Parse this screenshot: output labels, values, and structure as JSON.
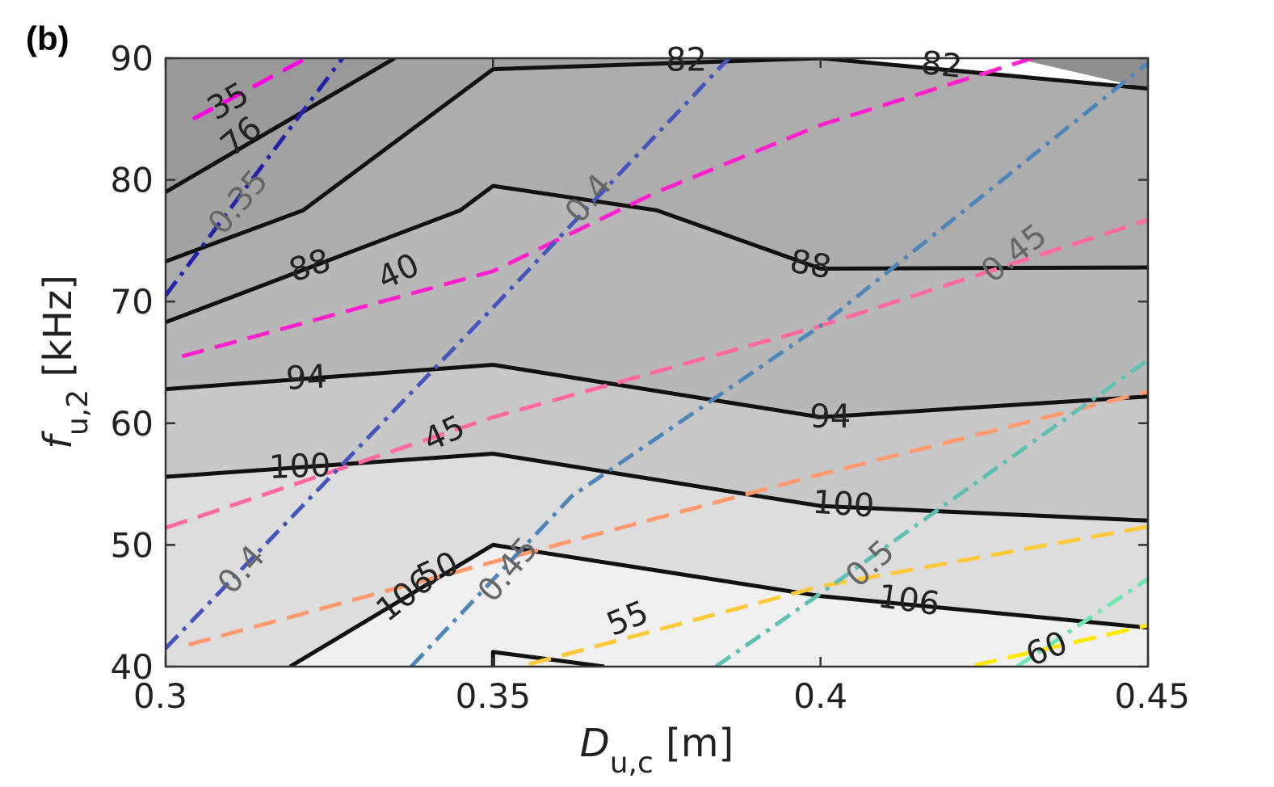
{
  "panel_label": "(b)",
  "chart_data": {
    "type": "contour",
    "xlabel": {
      "main": "D",
      "sub": "u,c",
      "unit": " [m]"
    },
    "ylabel": {
      "main": "f",
      "sub": "u,2",
      "unit": " [kHz]"
    },
    "xlim": [
      0.3,
      0.45
    ],
    "ylim": [
      40,
      90
    ],
    "xticks": [
      0.3,
      0.35,
      0.4,
      0.45
    ],
    "xtick_labels": [
      "0.3",
      "0.35",
      "0.4",
      "0.45"
    ],
    "yticks": [
      40,
      50,
      60,
      70,
      80,
      90
    ],
    "ytick_labels": [
      "40",
      "50",
      "60",
      "70",
      "80",
      "90"
    ],
    "filled_levels": [
      {
        "fill": "#f0f0f0",
        "boundary": [
          [
            0.3,
            40
          ],
          [
            0.319,
            40
          ],
          [
            0.35,
            50
          ],
          [
            0.4,
            45.8
          ],
          [
            0.45,
            43.2
          ],
          [
            0.45,
            40
          ]
        ]
      },
      {
        "fill": "#dddddd",
        "boundary": [
          [
            0.3,
            40
          ],
          [
            0.3,
            55.6
          ],
          [
            0.35,
            57.5
          ],
          [
            0.4,
            53.2
          ],
          [
            0.45,
            52
          ],
          [
            0.45,
            43.2
          ],
          [
            0.4,
            45.8
          ],
          [
            0.35,
            50
          ],
          [
            0.319,
            40
          ]
        ]
      },
      {
        "fill": "#c8c8c8",
        "boundary": [
          [
            0.3,
            55.6
          ],
          [
            0.3,
            62.8
          ],
          [
            0.35,
            64.8
          ],
          [
            0.4,
            60.5
          ],
          [
            0.45,
            62.2
          ],
          [
            0.45,
            52
          ],
          [
            0.4,
            53.2
          ],
          [
            0.35,
            57.5
          ]
        ]
      },
      {
        "fill": "#b8b8b8",
        "boundary": [
          [
            0.3,
            62.8
          ],
          [
            0.3,
            68.3
          ],
          [
            0.345,
            77.5
          ],
          [
            0.35,
            79.5
          ],
          [
            0.375,
            77.5
          ],
          [
            0.4,
            72.7
          ],
          [
            0.45,
            72.8
          ],
          [
            0.45,
            62.2
          ],
          [
            0.4,
            60.5
          ],
          [
            0.35,
            64.8
          ]
        ]
      },
      {
        "fill": "#adadad",
        "boundary": [
          [
            0.3,
            68.3
          ],
          [
            0.3,
            73.3
          ],
          [
            0.321,
            77.5
          ],
          [
            0.35,
            89.1
          ],
          [
            0.4,
            90
          ],
          [
            0.45,
            87.5
          ],
          [
            0.45,
            72.8
          ],
          [
            0.4,
            72.7
          ],
          [
            0.375,
            77.5
          ],
          [
            0.35,
            79.5
          ],
          [
            0.345,
            77.5
          ]
        ]
      },
      {
        "fill": "#a3a3a3",
        "boundary": [
          [
            0.3,
            73.3
          ],
          [
            0.3,
            79.0
          ],
          [
            0.335,
            90
          ],
          [
            0.4,
            90
          ],
          [
            0.35,
            89.1
          ],
          [
            0.321,
            77.5
          ]
        ]
      },
      {
        "fill": "#999999",
        "boundary": [
          [
            0.3,
            79.0
          ],
          [
            0.3,
            90
          ],
          [
            0.335,
            90
          ]
        ]
      },
      {
        "fill": "#8f8f8f",
        "boundary": [
          [
            0.43,
            90
          ],
          [
            0.45,
            90
          ],
          [
            0.45,
            87.5
          ]
        ]
      }
    ],
    "contour_series": [
      {
        "label": "76",
        "color": "#111111",
        "dash": "solid",
        "points": [
          [
            0.3,
            79.0
          ],
          [
            0.335,
            90
          ]
        ],
        "label_at": [
          0.3115,
          83.6
        ],
        "label_angle": -40
      },
      {
        "label": "82",
        "color": "#111111",
        "dash": "solid",
        "points": [
          [
            0.3,
            73.3
          ],
          [
            0.321,
            77.5
          ],
          [
            0.35,
            89.1
          ],
          [
            0.4,
            90
          ],
          [
            0.45,
            87.5
          ]
        ],
        "extra_labels": [
          [
            0.4185,
            89.5,
            6
          ]
        ],
        "label_at": [
          0.3795,
          89.9
        ],
        "label_angle": 0
      },
      {
        "label": "88",
        "color": "#111111",
        "dash": "solid",
        "points": [
          [
            0.3,
            68.3
          ],
          [
            0.345,
            77.5
          ],
          [
            0.35,
            79.5
          ],
          [
            0.375,
            77.5
          ],
          [
            0.4,
            72.7
          ],
          [
            0.45,
            72.8
          ]
        ],
        "extra_labels": [
          [
            0.3985,
            73.1,
            10
          ]
        ],
        "label_at": [
          0.322,
          73.0
        ],
        "label_angle": -18
      },
      {
        "label": "94",
        "color": "#111111",
        "dash": "solid",
        "points": [
          [
            0.3,
            62.8
          ],
          [
            0.35,
            64.8
          ],
          [
            0.4,
            60.5
          ],
          [
            0.45,
            62.2
          ]
        ],
        "extra_labels": [
          [
            0.4015,
            60.6,
            0
          ]
        ],
        "label_at": [
          0.3215,
          63.8
        ],
        "label_angle": -3
      },
      {
        "label": "100",
        "color": "#111111",
        "dash": "solid",
        "points": [
          [
            0.3,
            55.6
          ],
          [
            0.35,
            57.5
          ],
          [
            0.4,
            53.2
          ],
          [
            0.45,
            52
          ]
        ],
        "extra_labels": [
          [
            0.4035,
            53.4,
            4
          ]
        ],
        "label_at": [
          0.3205,
          56.5
        ],
        "label_angle": -2
      },
      {
        "label": "106",
        "color": "#111111",
        "dash": "solid",
        "points": [
          [
            0.319,
            40
          ],
          [
            0.35,
            50
          ],
          [
            0.4,
            45.8
          ],
          [
            0.45,
            43.2
          ]
        ],
        "extra_labels": [
          [
            0.4135,
            45.5,
            8
          ]
        ],
        "label_at": [
          0.3365,
          45.9
        ],
        "label_angle": -38
      },
      {
        "label": "",
        "color": "#111111",
        "dash": "solid",
        "points": [
          [
            0.35,
            40
          ],
          [
            0.35,
            41.2
          ],
          [
            0.367,
            40
          ]
        ]
      }
    ],
    "dashed_series": [
      {
        "label": "35",
        "color": "#ff00e6",
        "points": [
          [
            0.3042,
            85
          ],
          [
            0.3215,
            90
          ]
        ],
        "label_at": [
          0.3095,
          86.5
        ],
        "label_angle": -30
      },
      {
        "label": "40",
        "color": "#ff22cc",
        "points": [
          [
            0.3025,
            65.5
          ],
          [
            0.35,
            72.5
          ],
          [
            0.375,
            79
          ],
          [
            0.4,
            84.5
          ],
          [
            0.45,
            93
          ]
        ],
        "label_at": [
          0.3355,
          72.5
        ],
        "label_angle": -25
      },
      {
        "label": "45",
        "color": "#ff6aa0",
        "points": [
          [
            0.3,
            51.4
          ],
          [
            0.35,
            60.5
          ],
          [
            0.4,
            68
          ],
          [
            0.45,
            76.7
          ]
        ],
        "label_at": [
          0.3425,
          59.2
        ],
        "label_angle": -25
      },
      {
        "label": "50",
        "color": "#ff9a6e",
        "points": [
          [
            0.3035,
            41.8
          ],
          [
            0.35,
            48.6
          ],
          [
            0.4,
            55.8
          ],
          [
            0.45,
            62.6
          ]
        ],
        "label_at": [
          0.3415,
          48.0
        ],
        "label_angle": -25
      },
      {
        "label": "55",
        "color": "#ffc93c",
        "points": [
          [
            0.3555,
            40.2
          ],
          [
            0.4,
            46.6
          ],
          [
            0.45,
            51.5
          ]
        ],
        "label_at": [
          0.3705,
          44.0
        ],
        "label_angle": -22
      },
      {
        "label": "60",
        "color": "#ffe800",
        "points": [
          [
            0.4235,
            40.1
          ],
          [
            0.45,
            43.4
          ]
        ],
        "label_at": [
          0.4345,
          41.5
        ],
        "label_angle": -22
      }
    ],
    "dashdot_series": [
      {
        "label": "0.35",
        "color": "#2222aa",
        "points": [
          [
            0.3,
            70.5
          ],
          [
            0.327,
            90
          ]
        ],
        "label_at": [
          0.311,
          78.2
        ],
        "label_angle": -50
      },
      {
        "label": "0.4",
        "color": "#4455bb",
        "points": [
          [
            0.3,
            41.5
          ],
          [
            0.35,
            69.5
          ],
          [
            0.386,
            90
          ]
        ],
        "extra_labels": [
          [
            0.3645,
            78.5,
            -50
          ]
        ],
        "label_at": [
          0.3115,
          48.0
        ],
        "label_angle": -48
      },
      {
        "label": "0.45",
        "color": "#4f86b9",
        "points": [
          [
            0.3375,
            40
          ],
          [
            0.362,
            54
          ],
          [
            0.4,
            68
          ],
          [
            0.45,
            89.6
          ]
        ],
        "extra_labels": [
          [
            0.4295,
            74.0,
            -38
          ]
        ],
        "label_at": [
          0.3522,
          48.0
        ],
        "label_angle": -50
      },
      {
        "label": "0.5",
        "color": "#5dc0b1",
        "points": [
          [
            0.384,
            40
          ],
          [
            0.4,
            46
          ],
          [
            0.45,
            65.2
          ]
        ],
        "label_at": [
          0.4075,
          48.5
        ],
        "label_angle": -42
      },
      {
        "label": "",
        "color": "#6de6b1",
        "points": [
          [
            0.43,
            40
          ],
          [
            0.45,
            47.2
          ]
        ]
      }
    ]
  }
}
